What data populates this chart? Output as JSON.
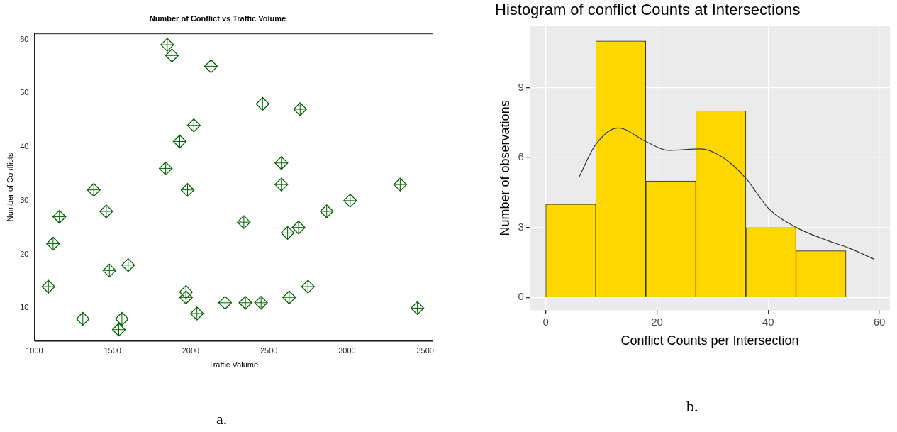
{
  "chart_data": [
    {
      "type": "scatter",
      "title": "Number of Conflict vs Traffic Volume",
      "xlabel": "Traffic Volume",
      "ylabel": "Number of Conflicts",
      "color": "#006400",
      "marker": "diamond",
      "grid": false,
      "x": [
        1090,
        1120,
        1160,
        1310,
        1380,
        1460,
        1480,
        1600,
        1540,
        1560,
        1840,
        1850,
        1880,
        1930,
        2020,
        1980,
        1970,
        1970,
        2040,
        2130,
        2220,
        2340,
        2350,
        2450,
        2460,
        2700,
        2580,
        2580,
        2620,
        2690,
        2630,
        2750,
        2870,
        3020,
        3340,
        3450
      ],
      "values": [
        14,
        22,
        27,
        8,
        32,
        28,
        17,
        18,
        6,
        8,
        36,
        59,
        57,
        41,
        44,
        32,
        13,
        12,
        9,
        55,
        11,
        26,
        11,
        11,
        48,
        47,
        37,
        33,
        24,
        25,
        12,
        14,
        28,
        30,
        33,
        10
      ],
      "xlim": [
        1000,
        3547
      ],
      "xticks": [
        1000,
        1500,
        2000,
        2500,
        3000,
        3500
      ],
      "ylim": [
        3.9,
        61.1
      ],
      "yticks": [
        10,
        20,
        30,
        40,
        50,
        60
      ],
      "annotations": [
        "a."
      ]
    },
    {
      "type": "histogram",
      "title": "Histogram of conflict Counts at Intersections",
      "xlabel": "Conflict Counts per Intersection",
      "ylabel": "Number of observations",
      "grid": true,
      "legend": false,
      "bins": [
        0,
        9,
        18,
        27,
        36,
        45,
        54
      ],
      "values": [
        4,
        11,
        5,
        8,
        3,
        2
      ],
      "color": "#ffd700",
      "series": [
        {
          "type": "line",
          "color": "#333333",
          "x": [
            6,
            8.9,
            13,
            18,
            22,
            27.9,
            32,
            36,
            40.1,
            45,
            50,
            54.5,
            59
          ],
          "values": [
            5.17,
            6.53,
            7.27,
            6.69,
            6.31,
            6.37,
            5.98,
            5.11,
            3.81,
            3.01,
            2.5,
            2.12,
            1.65
          ]
        }
      ],
      "xlim": [
        -2.9,
        61.9
      ],
      "xticks": [
        0,
        20,
        40,
        60
      ],
      "ylim": [
        -0.55,
        11.65
      ],
      "yticks": [
        0,
        3,
        6,
        9
      ],
      "annotations": [
        "b."
      ]
    }
  ]
}
